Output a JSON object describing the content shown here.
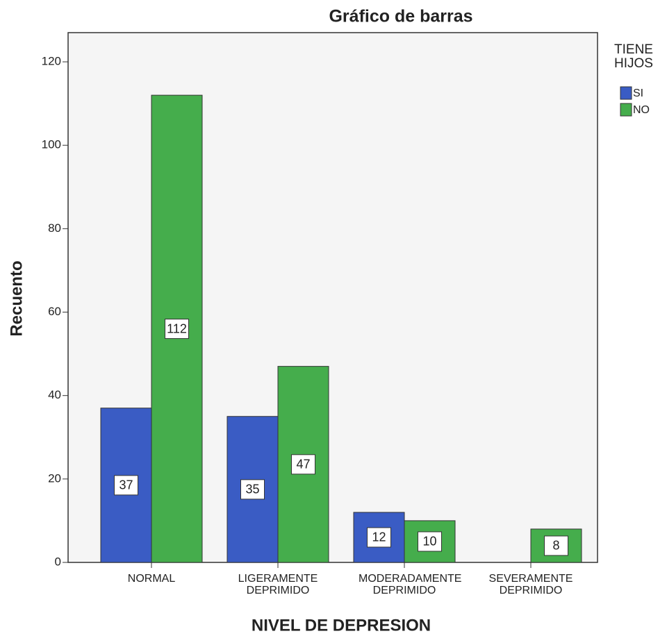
{
  "chart_data": {
    "type": "bar",
    "title": "Gráfico de barras",
    "x_label": "NIVEL DE DEPRESION",
    "y_label": "Recuento",
    "categories": [
      "NORMAL",
      "LIGERAMENTE DEPRIMIDO",
      "MODERADAMENTE DEPRIMIDO",
      "SEVERAMENTE DEPRIMIDO"
    ],
    "legend_title": "TIENE HIJOS",
    "series": [
      {
        "name": "SI",
        "color": "#3a5cc4",
        "values": [
          37,
          35,
          12,
          null
        ]
      },
      {
        "name": "NO",
        "color": "#45ad4c",
        "values": [
          112,
          47,
          10,
          8
        ]
      }
    ],
    "ylim": [
      0,
      127
    ],
    "yticks": [
      0,
      20,
      40,
      60,
      80,
      100,
      120
    ],
    "legend": "right"
  }
}
